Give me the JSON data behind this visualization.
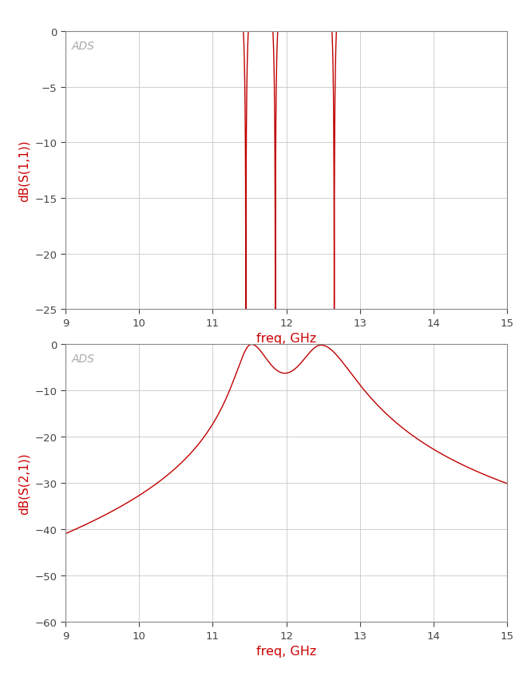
{
  "freq_start": 9,
  "freq_end": 15,
  "plot1": {
    "ylabel": "dB(S(1,1))",
    "xlabel": "freq, GHz",
    "ads_label": "ADS",
    "ylim": [
      -25,
      0
    ],
    "yticks": [
      0,
      -5,
      -10,
      -15,
      -20,
      -25
    ],
    "xticks": [
      9,
      10,
      11,
      12,
      13,
      14,
      15
    ],
    "line_color": "#C00000",
    "bg_color": "#FFFFFF",
    "grid_color": "#C8C8C8"
  },
  "plot2": {
    "ylabel": "dB(S(2,1))",
    "xlabel": "freq, GHz",
    "ads_label": "ADS",
    "ylim": [
      -60,
      0
    ],
    "yticks": [
      0,
      -10,
      -20,
      -30,
      -40,
      -50,
      -60
    ],
    "xticks": [
      9,
      10,
      11,
      12,
      13,
      14,
      15
    ],
    "line_color": "#C00000",
    "bg_color": "#FFFFFF",
    "grid_color": "#C8C8C8"
  },
  "ads_color": "#AAAAAA",
  "xlabel_color": "#CC0000",
  "ylabel_color": "#CC0000",
  "tick_color": "#444444",
  "spine_color": "#888888"
}
